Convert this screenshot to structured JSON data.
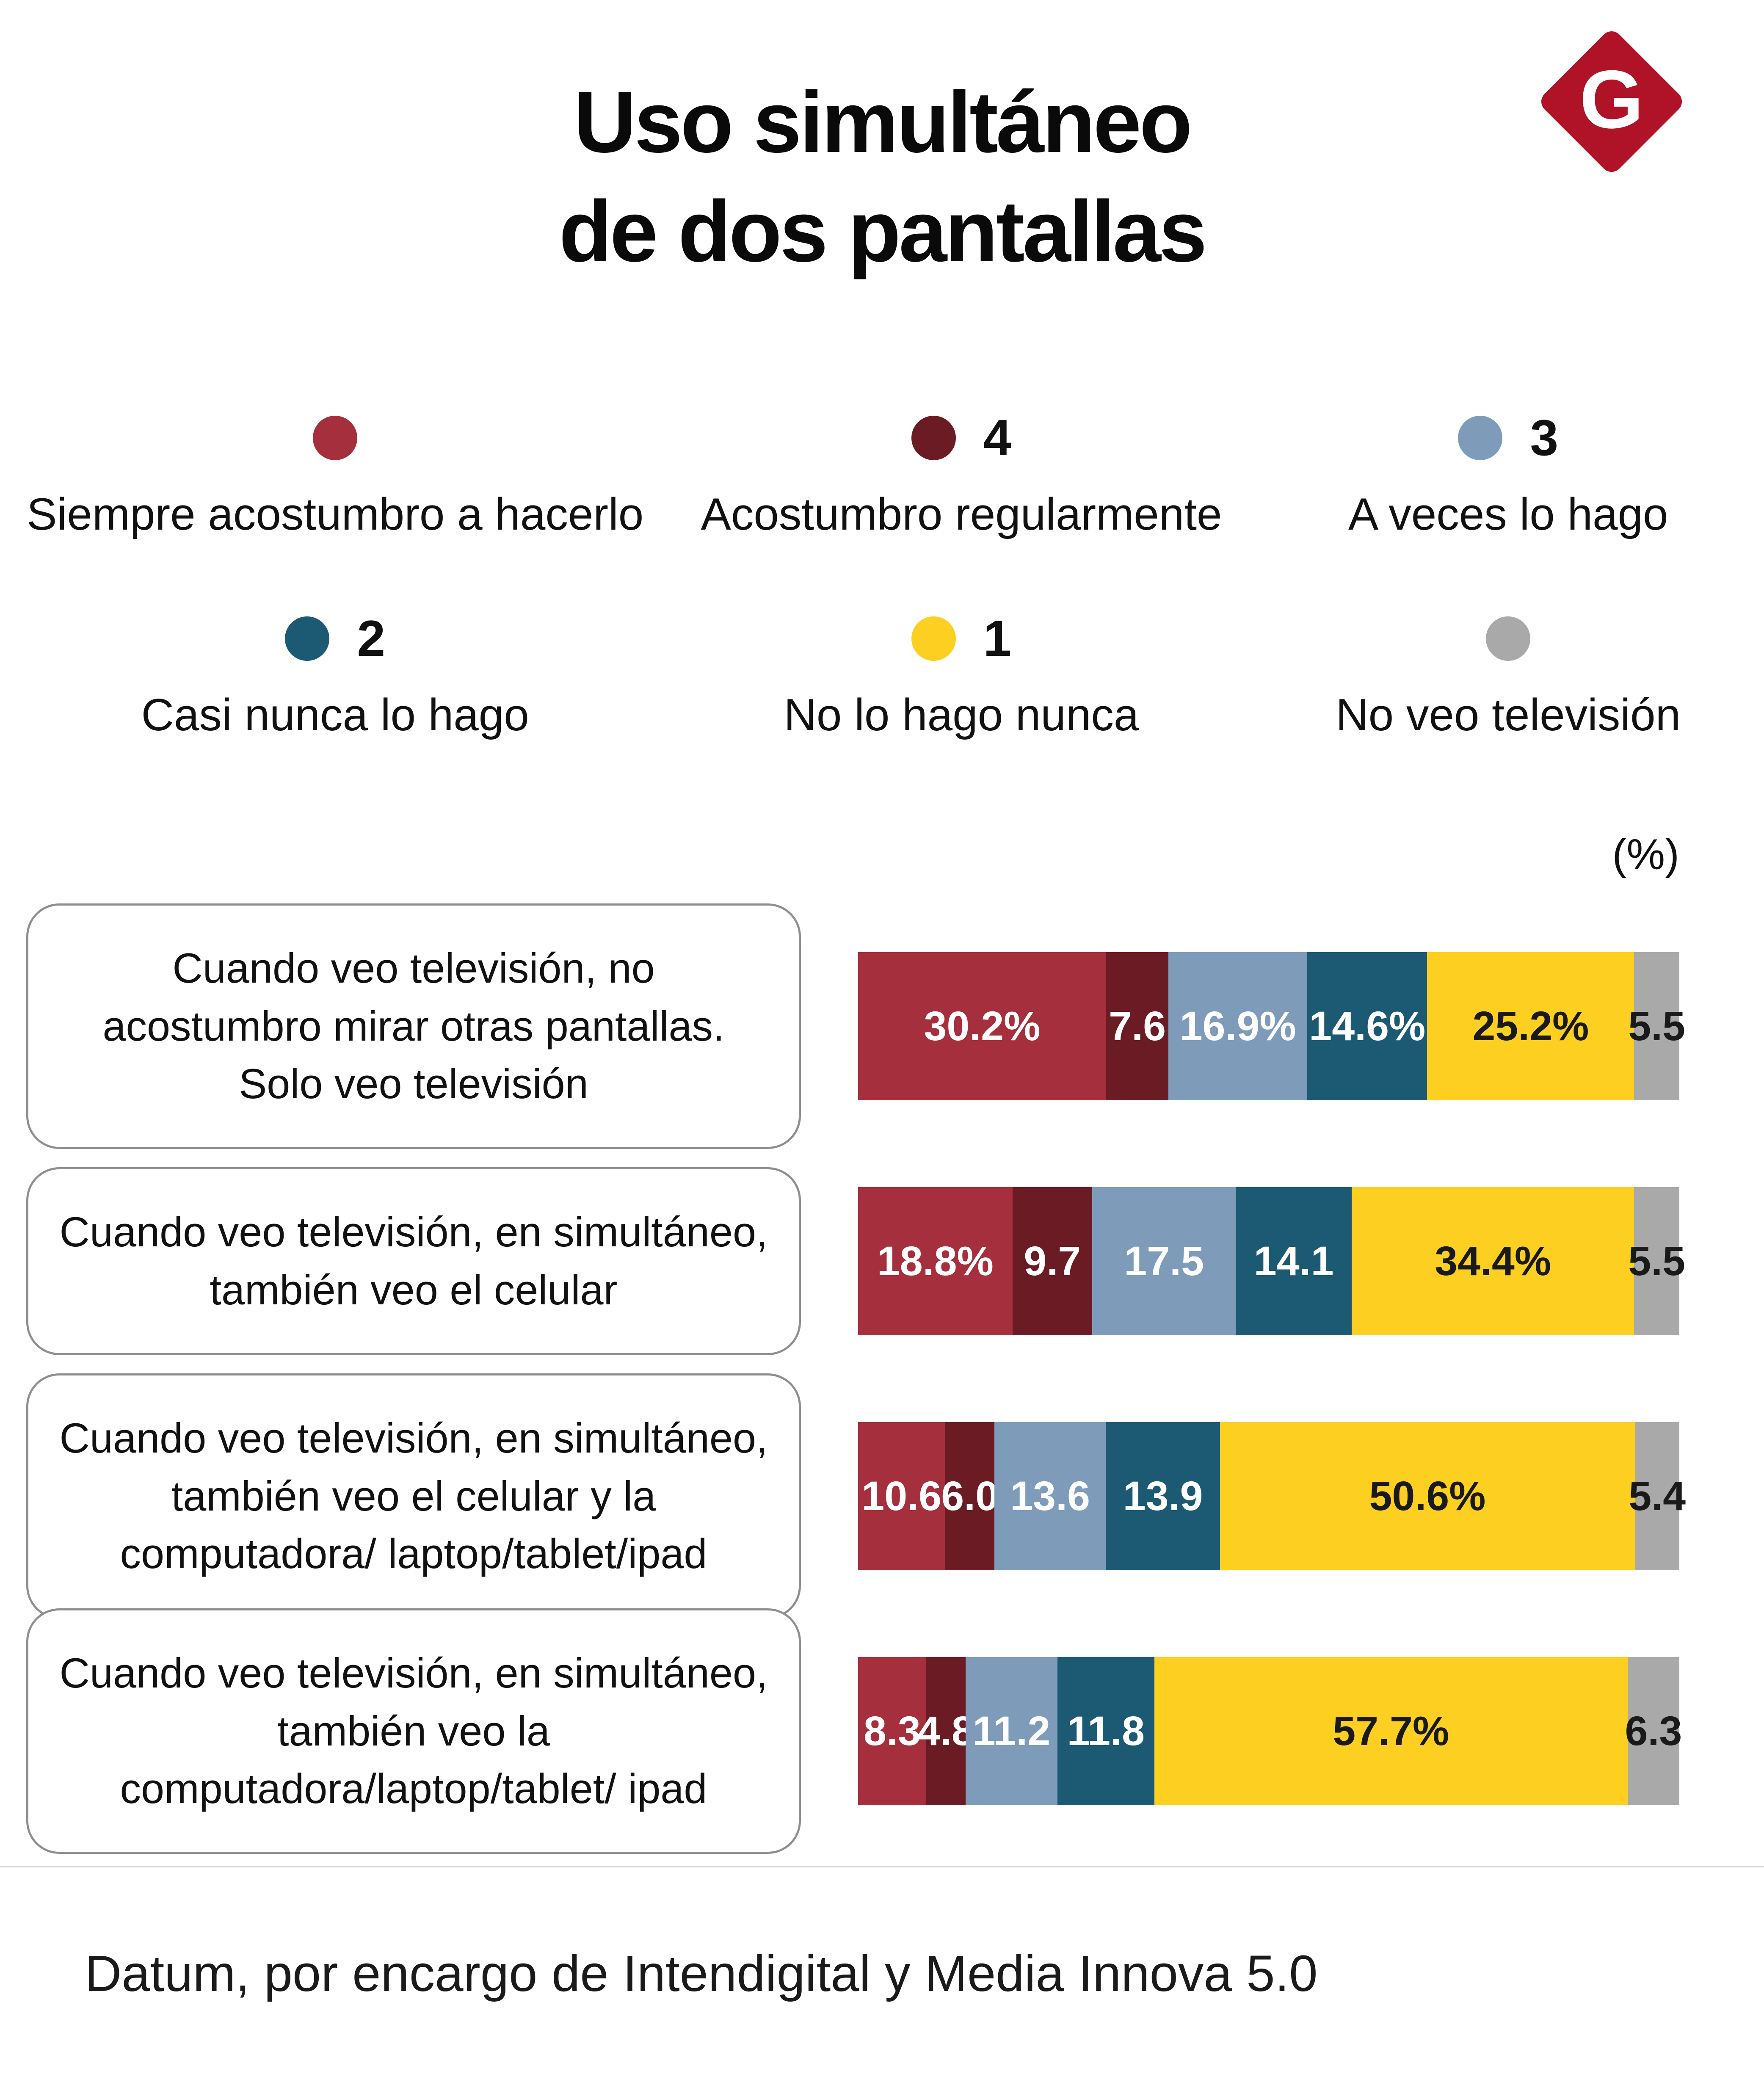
{
  "title": {
    "line1": "Uso simultáneo",
    "line2": "de dos pantallas"
  },
  "logo": {
    "letter": "G",
    "color": "#b01328"
  },
  "percent_axis_label": "(%)",
  "legend": {
    "items": [
      {
        "number": "",
        "label": "Siempre acostumbro a hacerlo",
        "color": "#a52f3d"
      },
      {
        "number": "4",
        "label": "Acostumbro regularmente",
        "color": "#6b1b24"
      },
      {
        "number": "3",
        "label": "A veces lo hago",
        "color": "#7e9cba"
      },
      {
        "number": "2",
        "label": "Casi nunca lo hago",
        "color": "#1c5a73"
      },
      {
        "number": "1",
        "label": "No lo hago nunca",
        "color": "#fccf21"
      },
      {
        "number": "",
        "label": "No veo televisión",
        "color": "#a9a9a9"
      }
    ]
  },
  "footer": {
    "source": "Datum, por encargo de Intendigital y Media Innova 5.0"
  },
  "chart_data": {
    "type": "bar",
    "orientation": "horizontal",
    "stacked": true,
    "unit": "%",
    "xlim": [
      0,
      100
    ],
    "legend_position": "top",
    "categories": [
      "Cuando veo televisión, no acostumbro mirar otras pantallas. Solo veo televisión",
      "Cuando veo televisión, en simultáneo, también veo el celular",
      "Cuando veo televisión, en simultáneo, también veo el celular y la computadora/ laptop/tablet/ipad",
      "Cuando veo televisión, en simultáneo, también veo la computadora/laptop/tablet/ ipad"
    ],
    "series": [
      {
        "name": "Siempre acostumbro a hacerlo",
        "color": "#a52f3d",
        "text_color": "#ffffff",
        "values": [
          30.2,
          18.8,
          10.6,
          8.3
        ]
      },
      {
        "name": "Acostumbro regularmente",
        "color": "#6b1b24",
        "text_color": "#ffffff",
        "values": [
          7.6,
          9.7,
          6.0,
          4.8
        ]
      },
      {
        "name": "A veces lo hago",
        "color": "#7e9cba",
        "text_color": "#ffffff",
        "values": [
          16.9,
          17.5,
          13.6,
          11.2
        ]
      },
      {
        "name": "Casi nunca lo hago",
        "color": "#1c5a73",
        "text_color": "#ffffff",
        "values": [
          14.6,
          14.1,
          13.9,
          11.8
        ]
      },
      {
        "name": "No lo hago nunca",
        "color": "#fccf21",
        "text_color": "#1a1a1a",
        "values": [
          25.2,
          34.4,
          50.6,
          57.7
        ]
      },
      {
        "name": "No veo televisión",
        "color": "#a9a9a9",
        "text_color": "#1a1a1a",
        "values": [
          5.5,
          5.5,
          5.4,
          6.3
        ]
      }
    ],
    "value_labels": [
      [
        "30.2%",
        "7.6",
        "16.9%",
        "14.6%",
        "25.2%",
        "5.5"
      ],
      [
        "18.8%",
        "9.7",
        "17.5",
        "14.1",
        "34.4%",
        "5.5"
      ],
      [
        "10.6",
        "6.0",
        "13.6",
        "13.9",
        "50.6%",
        "5.4"
      ],
      [
        "8.3",
        "4.8",
        "11.2",
        "11.8",
        "57.7%",
        "6.3"
      ]
    ]
  }
}
